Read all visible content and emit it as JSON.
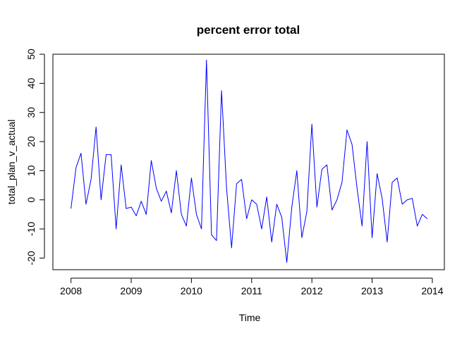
{
  "chart_data": {
    "type": "line",
    "title": "percent error total",
    "xlabel": "Time",
    "ylabel": "total_plan_v_actual",
    "xlim": [
      2007.7,
      2014.2
    ],
    "ylim": [
      -24,
      50
    ],
    "x_ticks": [
      2008,
      2009,
      2010,
      2011,
      2012,
      2013,
      2014
    ],
    "x_tick_labels": [
      "2008",
      "2009",
      "2010",
      "2011",
      "2012",
      "2013",
      "2014"
    ],
    "y_ticks": [
      -20,
      -10,
      0,
      10,
      20,
      30,
      40,
      50
    ],
    "y_tick_labels": [
      "-20",
      "-10",
      "0",
      "10",
      "20",
      "30",
      "40",
      "50"
    ],
    "grid": false,
    "line_color": "#0000ff",
    "series": [
      {
        "x_start": 2008,
        "frequency": 12,
        "values": [
          -3,
          11,
          16,
          -1.5,
          7,
          25,
          0,
          15.5,
          15.5,
          -10,
          12,
          -3,
          -2.5,
          -5.5,
          -0.5,
          -5,
          13.5,
          4,
          -0.5,
          3,
          -4.5,
          10,
          -5,
          -9,
          7.5,
          -5,
          -10,
          48,
          -12,
          -14,
          37.5,
          4,
          -16.5,
          5.5,
          7,
          -6.5,
          0,
          -1.5,
          -10,
          1,
          -14.5,
          -1.5,
          -6,
          -21.5,
          -2.5,
          10,
          -13,
          -4,
          26,
          -2.5,
          10.5,
          12,
          -3.5,
          0,
          6,
          24,
          19,
          4,
          -9,
          20,
          -13,
          9,
          0.5,
          -14.5,
          6,
          7.5,
          -1.5,
          0,
          0.5,
          -9,
          -5,
          -6.5
        ]
      }
    ]
  }
}
